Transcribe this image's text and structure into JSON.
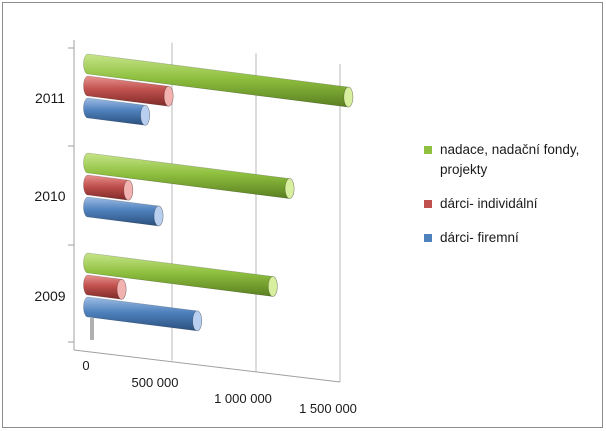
{
  "chart_data": {
    "type": "bar",
    "orientation": "horizontal",
    "style": "3d-cylinder",
    "categories": [
      "2009",
      "2010",
      "2011"
    ],
    "xlim": [
      0,
      1500000
    ],
    "xticks": [
      0,
      500000,
      1000000,
      1500000
    ],
    "xtick_labels": [
      "0",
      "500 000",
      "1 000 000",
      "1 500 000"
    ],
    "grid": true,
    "legend_position": "right",
    "series": [
      {
        "name": "nadace, nadační fondy, projekty",
        "color": "#8fc03f",
        "values": [
          1100000,
          1200000,
          1550000
        ]
      },
      {
        "name": "dárci- individální",
        "color": "#c0504d",
        "values": [
          200000,
          240000,
          480000
        ]
      },
      {
        "name": "dárci- firemní",
        "color": "#4f81bd",
        "values": [
          650000,
          420000,
          340000
        ]
      }
    ],
    "title": "",
    "xlabel": "",
    "ylabel": ""
  }
}
